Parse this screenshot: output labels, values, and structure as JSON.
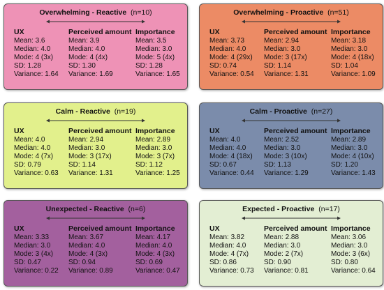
{
  "cards": [
    {
      "name": "Overwhelming - Reactive",
      "n": "(n=10)",
      "color": "#ee92b6",
      "cols": [
        {
          "header": "UX",
          "stats": [
            "Mean: 3.6",
            "Median: 4.0",
            "Mode: 4 (3x)",
            "SD: 1.28",
            "Variance: 1.64"
          ]
        },
        {
          "header": "Perceived amount",
          "stats": [
            "Mean: 3.9",
            "Median: 4.0",
            "Mode: 4 (4x)",
            "SD: 1.30",
            "Variance: 1.69"
          ]
        },
        {
          "header": "Importance",
          "stats": [
            "Mean: 3.5",
            "Median: 3.0",
            "Mode: 5 (4x)",
            "SD: 1.28",
            "Variance: 1.65"
          ]
        }
      ]
    },
    {
      "name": "Overwhelming - Proactive",
      "n": "(n=51)",
      "color": "#ec8b65",
      "cols": [
        {
          "header": "UX",
          "stats": [
            "Mean: 3.73",
            "Median: 4.0",
            "Mode: 4 (29x)",
            "SD: 0.74",
            "Variance: 0.54"
          ]
        },
        {
          "header": "Perceived amount",
          "stats": [
            "Mean: 2.94",
            "Median: 3.0",
            "Mode: 3 (17x)",
            "SD: 1.14",
            "Variance: 1.31"
          ]
        },
        {
          "header": "Importance",
          "stats": [
            "Mean: 3.18",
            "Median: 3.0",
            "Mode: 4 (18x)",
            "SD: 1.04",
            "Variance: 1.09"
          ]
        }
      ]
    },
    {
      "name": "Calm - Reactive",
      "n": "(n=19)",
      "color": "#e2f08c",
      "cols": [
        {
          "header": "UX",
          "stats": [
            "Mean: 4.0",
            "Median: 4.0",
            "Mode: 4 (7x)",
            "SD: 0.79",
            "Variance: 0.63"
          ]
        },
        {
          "header": "Perceived amount",
          "stats": [
            "Mean: 2.94",
            "Median: 3.0",
            "Mode: 3 (17x)",
            "SD: 1.14",
            "Variance: 1.31"
          ]
        },
        {
          "header": "Importance",
          "stats": [
            "Mean: 2.89",
            "Median: 3.0",
            "Mode: 3 (7x)",
            "SD: 1.12",
            "Variance: 1.25"
          ]
        }
      ]
    },
    {
      "name": "Calm - Proactive",
      "n": "(n=27)",
      "color": "#7b8cab",
      "cols": [
        {
          "header": "UX",
          "stats": [
            "Mean: 4.0",
            "Median: 4.0",
            "Mode: 4 (18x)",
            "SD: 0.67",
            "Variance: 0.44"
          ]
        },
        {
          "header": "Perceived amount",
          "stats": [
            "Mean: 2.52",
            "Median: 3.0",
            "Mode: 3 (10x)",
            "SD: 1.13",
            "Variance: 1.29"
          ]
        },
        {
          "header": "Importance",
          "stats": [
            "Mean: 2.89",
            "Median: 3.0",
            "Mode: 4 (10x)",
            "SD: 1.20",
            "Variance: 1.43"
          ]
        }
      ]
    },
    {
      "name": "Unexpected - Reactive",
      "n": "(n=6)",
      "color": "#a3609e",
      "cols": [
        {
          "header": "UX",
          "stats": [
            "Mean: 3.33",
            "Median: 3.0",
            "Mode: 3 (4x)",
            "SD: 0.47",
            "Variance: 0.22"
          ]
        },
        {
          "header": "Perceived amount",
          "stats": [
            "Mean: 3.67",
            "Median: 4.0",
            "Mode: 4 (3x)",
            "SD: 0.94",
            "Variance: 0.89"
          ]
        },
        {
          "header": "Importance",
          "stats": [
            "Mean: 4.17",
            "Median: 4.0",
            "Mode: 4 (3x)",
            "SD: 0.69",
            "Variance: 0.47"
          ]
        }
      ]
    },
    {
      "name": "Expected - Proactive",
      "n": "(n=17)",
      "color": "#e3eed3",
      "cols": [
        {
          "header": "UX",
          "stats": [
            "Mean: 3.82",
            "Median: 4.0",
            "Mode: 4 (7x)",
            "SD: 0.86",
            "Variance: 0.73"
          ]
        },
        {
          "header": "Perceived amount",
          "stats": [
            "Mean: 2.88",
            "Median: 3.0",
            "Mode: 2 (7x)",
            "SD: 0.90",
            "Variance: 0.81"
          ]
        },
        {
          "header": "Importance",
          "stats": [
            "Mean: 3.06",
            "Median: 3.0",
            "Mode: 3 (6x)",
            "SD: 0.80",
            "Variance: 0.64"
          ]
        }
      ]
    }
  ]
}
